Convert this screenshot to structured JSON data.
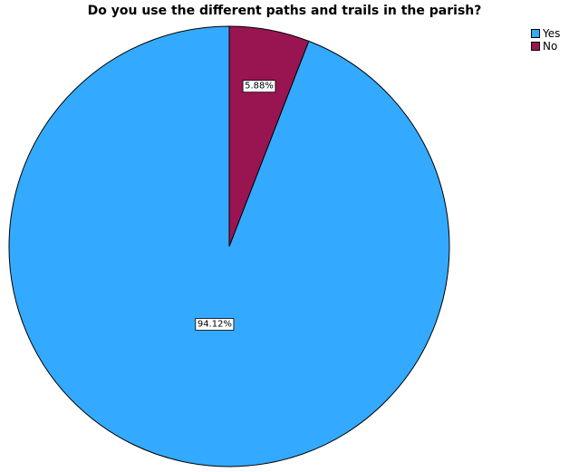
{
  "chart_data": {
    "type": "pie",
    "title": "Do you use the different paths and trails in the parish?",
    "slices": [
      {
        "label": "Yes",
        "value": 94.12,
        "data_label": "94.12%",
        "color": "#33aaff"
      },
      {
        "label": "No",
        "value": 5.88,
        "data_label": "5.88%",
        "color": "#991551"
      }
    ],
    "start": "12 o'clock",
    "direction": "counter-clockwise",
    "legend_position": "top-right"
  }
}
